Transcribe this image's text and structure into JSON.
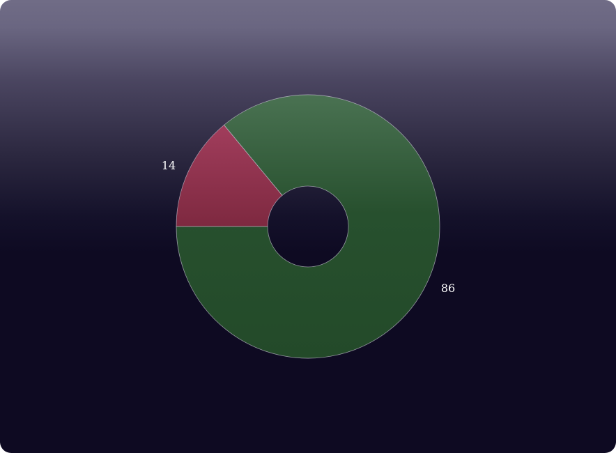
{
  "chart_data": {
    "type": "pie",
    "donut": true,
    "slices": [
      {
        "label": "14",
        "value": 14,
        "color": "#8c2e45"
      },
      {
        "label": "86",
        "value": 86,
        "color": "#2a5230"
      }
    ],
    "title": "",
    "legend": "none"
  }
}
